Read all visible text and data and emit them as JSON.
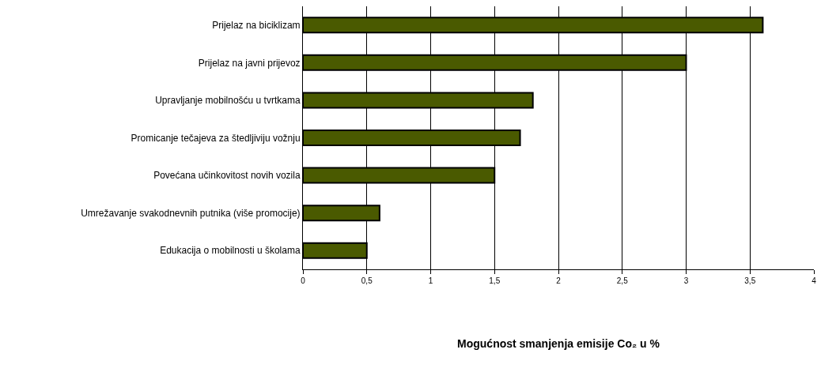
{
  "chart_data": {
    "type": "bar",
    "orientation": "horizontal",
    "xlabel": "Mogućnost smanjenja emisije Co₂ u %",
    "categories": [
      "Prijelaz na biciklizam",
      "Prijelaz na javni prijevoz",
      "Upravljanje mobilnošću u tvrtkama",
      "Promicanje tečajeva za štedljiviju vožnju",
      "Povećana učinkovitost novih vozila",
      "Umrežavanje svakodnevnih putnika (više promocije)",
      "Edukacija o mobilnosti u školama"
    ],
    "values": [
      3.6,
      3.0,
      1.8,
      1.7,
      1.5,
      0.6,
      0.5
    ],
    "color": "#4a5a00",
    "xlim": [
      0,
      4
    ],
    "xticks": [
      0,
      {
        "value": 0.5,
        "label": "0,5"
      },
      1,
      {
        "value": 1.5,
        "label": "1,5"
      },
      2,
      {
        "value": 2.5,
        "label": "2,5"
      },
      3,
      {
        "value": 3.5,
        "label": "3,5"
      },
      4
    ],
    "grid": "x"
  }
}
